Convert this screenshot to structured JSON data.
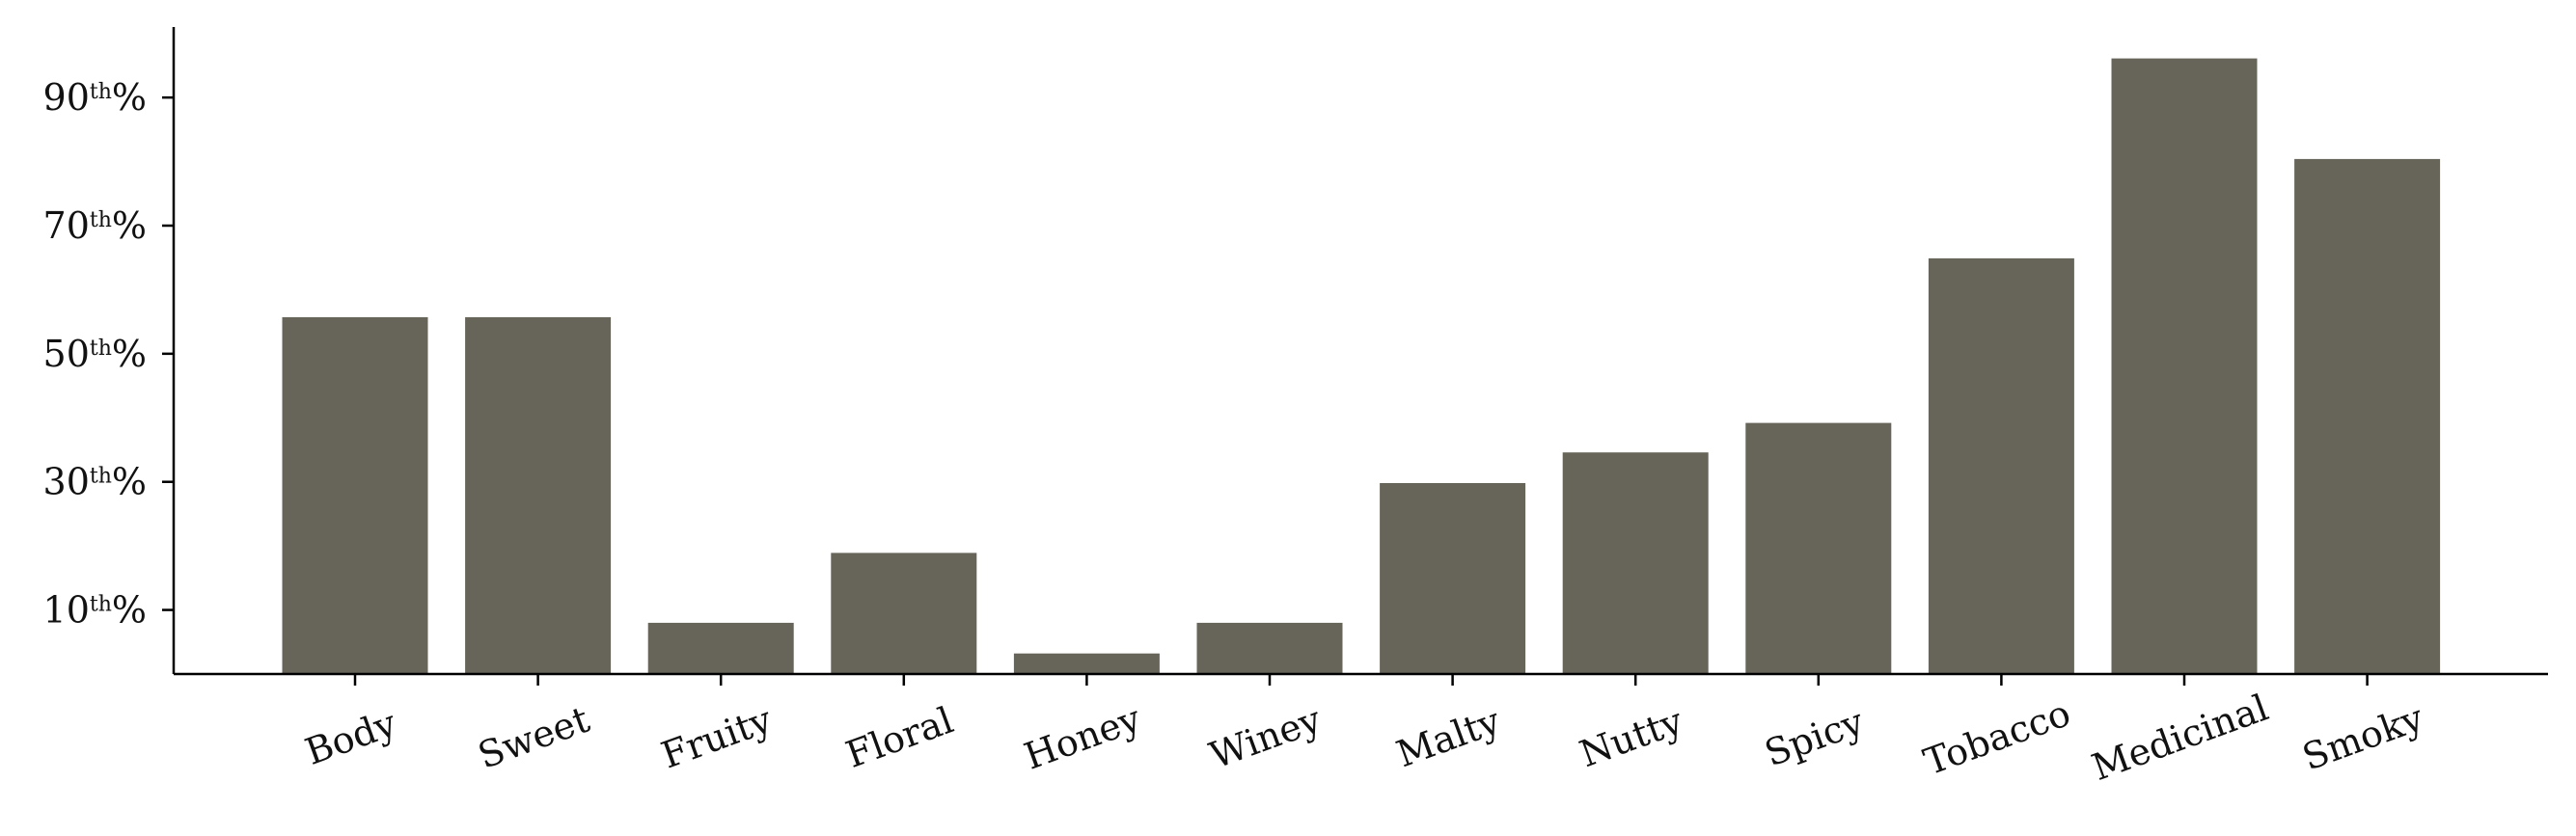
{
  "chart_data": {
    "type": "bar",
    "categories": [
      "Body",
      "Sweet",
      "Fruity",
      "Floral",
      "Honey",
      "Winey",
      "Malty",
      "Nutty",
      "Spicy",
      "Tobacco",
      "Medicinal",
      "Smoky"
    ],
    "values": [
      55.7,
      55.7,
      8.0,
      18.9,
      3.2,
      8.0,
      29.8,
      34.6,
      39.2,
      64.9,
      96.1,
      80.4
    ],
    "ylim": [
      0,
      100
    ],
    "yticks": [
      {
        "value": 10,
        "number": "10",
        "suffix": "th",
        "unit": "%"
      },
      {
        "value": 30,
        "number": "30",
        "suffix": "th",
        "unit": "%"
      },
      {
        "value": 50,
        "number": "50",
        "suffix": "th",
        "unit": "%"
      },
      {
        "value": 70,
        "number": "70",
        "suffix": "th",
        "unit": "%"
      },
      {
        "value": 90,
        "number": "90",
        "suffix": "th",
        "unit": "%"
      }
    ],
    "bar_color": "#67645a",
    "grid": false,
    "xlabel_rotation": -20
  }
}
